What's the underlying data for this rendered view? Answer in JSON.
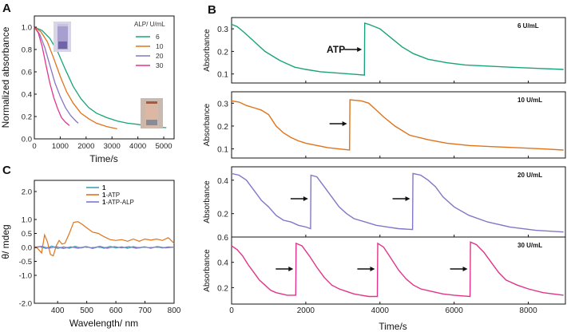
{
  "panel_labels": {
    "a": "A",
    "b": "B",
    "c": "C"
  },
  "colors": {
    "c6": "#1aa37a",
    "c10": "#e0731a",
    "c20": "#8575c8",
    "c30": "#e0348a",
    "c1": "#3aa6b5",
    "arrow": "#111111",
    "axis": "#111111"
  },
  "chart_data": [
    {
      "id": "A",
      "type": "line",
      "xlabel": "Time/s",
      "ylabel": "Normalized absorbance",
      "xlim": [
        0,
        5400
      ],
      "ylim": [
        0,
        1.1
      ],
      "xticks": [
        "0",
        "1000",
        "2000",
        "3000",
        "4000",
        "5000"
      ],
      "yticks": [
        "0.0",
        "0.2",
        "0.4",
        "0.6",
        "0.8",
        "1.0"
      ],
      "legend_title": "ALP/ U/mL",
      "series": [
        {
          "name": "6",
          "color": "#1aa37a",
          "x": [
            0,
            300,
            600,
            900,
            1200,
            1500,
            1800,
            2100,
            2400,
            2800,
            3200,
            3600,
            4000,
            4500,
            5100
          ],
          "y": [
            1.0,
            0.97,
            0.9,
            0.78,
            0.62,
            0.47,
            0.36,
            0.28,
            0.23,
            0.19,
            0.16,
            0.14,
            0.13,
            0.11,
            0.1
          ]
        },
        {
          "name": "10",
          "color": "#e0731a",
          "x": [
            0,
            250,
            500,
            750,
            1000,
            1250,
            1500,
            1800,
            2100,
            2400,
            2800,
            3200
          ],
          "y": [
            1.0,
            0.96,
            0.87,
            0.72,
            0.56,
            0.42,
            0.32,
            0.23,
            0.18,
            0.14,
            0.11,
            0.09
          ]
        },
        {
          "name": "20",
          "color": "#8575c8",
          "x": [
            0,
            200,
            400,
            600,
            800,
            1000,
            1200,
            1400,
            1600,
            1700
          ],
          "y": [
            1.0,
            0.94,
            0.82,
            0.66,
            0.5,
            0.38,
            0.28,
            0.21,
            0.16,
            0.14
          ]
        },
        {
          "name": "30",
          "color": "#e0348a",
          "x": [
            0,
            150,
            300,
            450,
            600,
            750,
            900,
            1050,
            1200,
            1350
          ],
          "y": [
            1.0,
            0.95,
            0.83,
            0.66,
            0.5,
            0.37,
            0.27,
            0.19,
            0.15,
            0.12
          ]
        }
      ]
    },
    {
      "id": "B",
      "type": "line",
      "xlabel": "Time/s",
      "xlim": [
        0,
        9000
      ],
      "xticks": [
        "0",
        "2000",
        "4000",
        "6000",
        "8000"
      ],
      "annotation": "ATP",
      "subplots": [
        {
          "label": "6 U/mL",
          "ylabel": "Absorbance",
          "color": "#1aa37a",
          "ylim": [
            0.06,
            0.35
          ],
          "yticks": [
            "0.1",
            "0.2",
            "0.3"
          ],
          "arrows_at": [
            3600
          ],
          "x": [
            0,
            150,
            300,
            500,
            700,
            900,
            1100,
            1300,
            1500,
            1700,
            2000,
            2400,
            2800,
            3200,
            3580,
            3590,
            3700,
            4000,
            4300,
            4600,
            4900,
            5300,
            5800,
            6300,
            6900,
            7500,
            8200,
            8950
          ],
          "y": [
            0.32,
            0.31,
            0.29,
            0.26,
            0.23,
            0.2,
            0.18,
            0.16,
            0.145,
            0.13,
            0.12,
            0.11,
            0.105,
            0.1,
            0.095,
            0.325,
            0.32,
            0.3,
            0.26,
            0.22,
            0.19,
            0.165,
            0.15,
            0.14,
            0.135,
            0.13,
            0.125,
            0.12
          ]
        },
        {
          "label": "10 U/mL",
          "ylabel": "Absorbance",
          "color": "#e0731a",
          "ylim": [
            0.06,
            0.35
          ],
          "yticks": [
            "0.1",
            "0.2",
            "0.3"
          ],
          "arrows_at": [
            3200
          ],
          "x": [
            0,
            200,
            400,
            600,
            800,
            1000,
            1200,
            1400,
            1600,
            1800,
            2000,
            2300,
            2600,
            2900,
            3180,
            3190,
            3500,
            3700,
            3900,
            4100,
            4400,
            4800,
            5300,
            5800,
            6400,
            7000,
            7700,
            8400,
            8950
          ],
          "y": [
            0.31,
            0.305,
            0.29,
            0.28,
            0.27,
            0.25,
            0.2,
            0.17,
            0.15,
            0.135,
            0.125,
            0.115,
            0.105,
            0.1,
            0.095,
            0.315,
            0.31,
            0.3,
            0.27,
            0.24,
            0.2,
            0.16,
            0.14,
            0.125,
            0.115,
            0.11,
            0.105,
            0.1,
            0.095
          ]
        },
        {
          "label": "20 U/mL",
          "ylabel": "Absorbance",
          "color": "#8575c8",
          "ylim": [
            0.06,
            0.48
          ],
          "yticks": [
            "0.2",
            "0.4"
          ],
          "arrows_at": [
            2150,
            4900
          ],
          "x": [
            0,
            200,
            400,
            600,
            800,
            1000,
            1200,
            1400,
            1600,
            1800,
            2000,
            2130,
            2140,
            2300,
            2500,
            2700,
            2900,
            3100,
            3300,
            3600,
            3900,
            4200,
            4500,
            4880,
            4890,
            5100,
            5300,
            5500,
            5700,
            6000,
            6400,
            6900,
            7500,
            8200,
            8950
          ],
          "y": [
            0.44,
            0.43,
            0.4,
            0.34,
            0.28,
            0.24,
            0.19,
            0.16,
            0.15,
            0.13,
            0.12,
            0.11,
            0.43,
            0.42,
            0.36,
            0.3,
            0.24,
            0.2,
            0.17,
            0.15,
            0.13,
            0.12,
            0.11,
            0.105,
            0.44,
            0.43,
            0.4,
            0.36,
            0.3,
            0.24,
            0.19,
            0.15,
            0.12,
            0.1,
            0.09
          ]
        },
        {
          "label": "30 U/mL",
          "ylabel": "Absorbance",
          "color": "#e0348a",
          "ylim": [
            0.07,
            0.6
          ],
          "yticks": [
            "0.2",
            "0.4",
            "0.6"
          ],
          "arrows_at": [
            1750,
            3950,
            6450
          ],
          "x": [
            0,
            150,
            300,
            450,
            600,
            750,
            900,
            1050,
            1200,
            1350,
            1500,
            1730,
            1740,
            1900,
            2100,
            2300,
            2500,
            2700,
            2900,
            3100,
            3300,
            3500,
            3700,
            3930,
            3940,
            4100,
            4300,
            4500,
            4700,
            4900,
            5100,
            5400,
            5700,
            6000,
            6200,
            6430,
            6440,
            6600,
            6800,
            7000,
            7200,
            7400,
            7700,
            8000,
            8400,
            8950
          ],
          "y": [
            0.53,
            0.5,
            0.45,
            0.38,
            0.32,
            0.26,
            0.22,
            0.18,
            0.16,
            0.15,
            0.14,
            0.14,
            0.55,
            0.53,
            0.45,
            0.36,
            0.28,
            0.22,
            0.19,
            0.17,
            0.15,
            0.14,
            0.13,
            0.13,
            0.55,
            0.52,
            0.43,
            0.34,
            0.27,
            0.22,
            0.19,
            0.17,
            0.15,
            0.14,
            0.135,
            0.13,
            0.56,
            0.54,
            0.48,
            0.4,
            0.32,
            0.26,
            0.22,
            0.19,
            0.16,
            0.14
          ]
        }
      ]
    },
    {
      "id": "C",
      "type": "line",
      "xlabel": "Wavelength/ nm",
      "ylabel": "θ/ mdeg",
      "xlim": [
        320,
        800
      ],
      "ylim": [
        -2.0,
        2.4
      ],
      "xticks": [
        "400",
        "500",
        "600",
        "700",
        "800"
      ],
      "yticks": [
        "-2.0",
        "-1.0",
        "-0.5",
        "0.0",
        "0.5",
        "1.0",
        "2.0"
      ],
      "yticks_values": [
        -2.0,
        -1.0,
        -0.5,
        0.0,
        0.5,
        1.0,
        2.0
      ],
      "series": [
        {
          "name": "1",
          "name_bold": "1",
          "name_suffix": "",
          "color": "#3aa6b5",
          "x": [
            320,
            340,
            360,
            380,
            400,
            420,
            440,
            460,
            480,
            500,
            520,
            540,
            560,
            580,
            600,
            620,
            640,
            660,
            680,
            700,
            720,
            740,
            760,
            780,
            800
          ],
          "y": [
            0,
            0.03,
            -0.04,
            0.05,
            -0.04,
            0.02,
            -0.03,
            0.04,
            -0.02,
            0.03,
            -0.04,
            0.02,
            -0.03,
            0.04,
            -0.02,
            0.02,
            -0.03,
            0.03,
            -0.02,
            0.02,
            -0.03,
            0.03,
            -0.02,
            0.02,
            0
          ]
        },
        {
          "name": "1-ATP",
          "name_bold": "1",
          "name_suffix": "-ATP",
          "color": "#e0731a",
          "x": [
            320,
            330,
            345,
            355,
            365,
            375,
            385,
            395,
            405,
            415,
            425,
            440,
            455,
            470,
            485,
            500,
            520,
            540,
            560,
            580,
            600,
            620,
            640,
            660,
            680,
            700,
            720,
            740,
            760,
            780,
            800
          ],
          "y": [
            0,
            -0.02,
            -0.2,
            0.45,
            0.2,
            -0.25,
            -0.3,
            0.05,
            0.25,
            0.12,
            0.15,
            0.5,
            0.9,
            0.92,
            0.82,
            0.7,
            0.55,
            0.5,
            0.38,
            0.28,
            0.25,
            0.28,
            0.22,
            0.3,
            0.22,
            0.3,
            0.26,
            0.3,
            0.25,
            0.35,
            0.15
          ]
        },
        {
          "name": "1-ATP-ALP",
          "name_bold": "1",
          "name_suffix": "-ATP-ALP",
          "color": "#8575c8",
          "x": [
            320,
            345,
            370,
            395,
            420,
            445,
            470,
            495,
            520,
            545,
            570,
            595,
            620,
            645,
            670,
            695,
            720,
            745,
            770,
            800
          ],
          "y": [
            0,
            0.04,
            -0.03,
            0.03,
            -0.04,
            0.02,
            -0.03,
            0.03,
            -0.02,
            0.04,
            -0.03,
            0.03,
            -0.02,
            0.03,
            -0.03,
            0.02,
            -0.02,
            0.03,
            -0.02,
            0.01
          ]
        }
      ]
    }
  ]
}
